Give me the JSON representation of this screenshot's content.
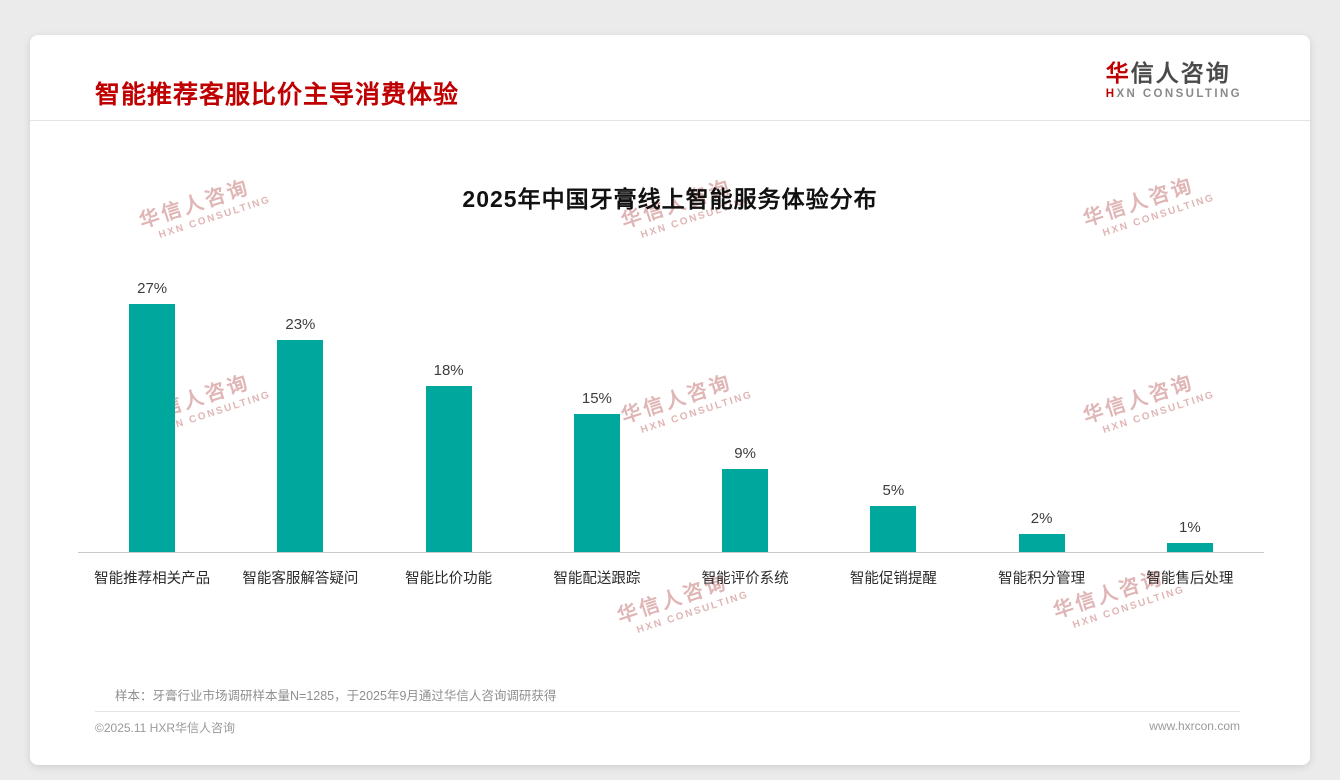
{
  "header": {
    "title": "智能推荐客服比价主导消费体验",
    "logo": {
      "cn_accent": "华",
      "cn_rest": "信人咨询",
      "en_accent": "H",
      "en_rest": "XN CONSULTING"
    }
  },
  "chart_data": {
    "type": "bar",
    "title": "2025年中国牙膏线上智能服务体验分布",
    "categories": [
      "智能推荐相关产品",
      "智能客服解答疑问",
      "智能比价功能",
      "智能配送跟踪",
      "智能评价系统",
      "智能促销提醒",
      "智能积分管理",
      "智能售后处理"
    ],
    "values": [
      27,
      23,
      18,
      15,
      9,
      5,
      2,
      1
    ],
    "unit": "%",
    "bar_color": "#00a79d",
    "xlabel": "",
    "ylabel": "",
    "ylim": [
      0,
      30
    ],
    "grid": false,
    "legend": false,
    "value_labels": [
      "27%",
      "23%",
      "18%",
      "15%",
      "9%",
      "5%",
      "2%",
      "1%"
    ]
  },
  "footnote": "样本：牙膏行业市场调研样本量N=1285，于2025年9月通过华信人咨询调研获得",
  "footer": {
    "left": "©2025.11 HXR华信人咨询",
    "right": "www.hxrcon.com"
  },
  "watermark": {
    "cn": "华信人咨询",
    "en": "HXN CONSULTING"
  },
  "colors": {
    "title_red": "#c00000",
    "bar_teal": "#00a79d",
    "background": "#ebebeb",
    "card": "#ffffff"
  }
}
